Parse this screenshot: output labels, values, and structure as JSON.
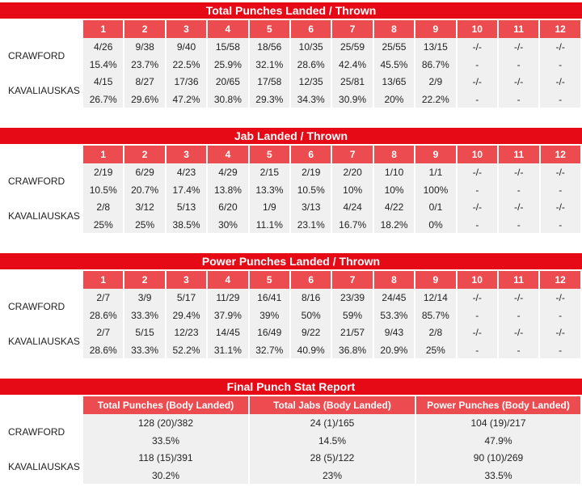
{
  "colors": {
    "title_bg": "#e60a16",
    "header_bg": "#ec4c4f",
    "cell_bg": "#f0f0f0"
  },
  "total": {
    "title": "Total Punches Landed / Thrown",
    "rounds": [
      "1",
      "2",
      "3",
      "4",
      "5",
      "6",
      "7",
      "8",
      "9",
      "10",
      "11",
      "12"
    ],
    "crawford": {
      "name": "CRAWFORD",
      "landed": [
        "4/26",
        "9/38",
        "9/40",
        "15/58",
        "18/56",
        "10/35",
        "25/59",
        "25/55",
        "13/15",
        "-/-",
        "-/-",
        "-/-"
      ],
      "pct": [
        "15.4%",
        "23.7%",
        "22.5%",
        "25.9%",
        "32.1%",
        "28.6%",
        "42.4%",
        "45.5%",
        "86.7%",
        "-",
        "-",
        "-"
      ]
    },
    "kavaliauskas": {
      "name": "KAVALIAUSKAS",
      "landed": [
        "4/15",
        "8/27",
        "17/36",
        "20/65",
        "17/58",
        "12/35",
        "25/81",
        "13/65",
        "2/9",
        "-/-",
        "-/-",
        "-/-"
      ],
      "pct": [
        "26.7%",
        "29.6%",
        "47.2%",
        "30.8%",
        "29.3%",
        "34.3%",
        "30.9%",
        "20%",
        "22.2%",
        "-",
        "-",
        "-"
      ]
    }
  },
  "jab": {
    "title": "Jab Landed / Thrown",
    "rounds": [
      "1",
      "2",
      "3",
      "4",
      "5",
      "6",
      "7",
      "8",
      "9",
      "10",
      "11",
      "12"
    ],
    "crawford": {
      "name": "CRAWFORD",
      "landed": [
        "2/19",
        "6/29",
        "4/23",
        "4/29",
        "2/15",
        "2/19",
        "2/20",
        "1/10",
        "1/1",
        "-/-",
        "-/-",
        "-/-"
      ],
      "pct": [
        "10.5%",
        "20.7%",
        "17.4%",
        "13.8%",
        "13.3%",
        "10.5%",
        "10%",
        "10%",
        "100%",
        "-",
        "-",
        "-"
      ]
    },
    "kavaliauskas": {
      "name": "KAVALIAUSKAS",
      "landed": [
        "2/8",
        "3/12",
        "5/13",
        "6/20",
        "1/9",
        "3/13",
        "4/24",
        "4/22",
        "0/1",
        "-/-",
        "-/-",
        "-/-"
      ],
      "pct": [
        "25%",
        "25%",
        "38.5%",
        "30%",
        "11.1%",
        "23.1%",
        "16.7%",
        "18.2%",
        "0%",
        "-",
        "-",
        "-"
      ]
    }
  },
  "power": {
    "title": "Power Punches Landed / Thrown",
    "rounds": [
      "1",
      "2",
      "3",
      "4",
      "5",
      "6",
      "7",
      "8",
      "9",
      "10",
      "11",
      "12"
    ],
    "crawford": {
      "name": "CRAWFORD",
      "landed": [
        "2/7",
        "3/9",
        "5/17",
        "11/29",
        "16/41",
        "8/16",
        "23/39",
        "24/45",
        "12/14",
        "-/-",
        "-/-",
        "-/-"
      ],
      "pct": [
        "28.6%",
        "33.3%",
        "29.4%",
        "37.9%",
        "39%",
        "50%",
        "59%",
        "53.3%",
        "85.7%",
        "-",
        "-",
        "-"
      ]
    },
    "kavaliauskas": {
      "name": "KAVALIAUSKAS",
      "landed": [
        "2/7",
        "5/15",
        "12/23",
        "14/45",
        "16/49",
        "9/22",
        "21/57",
        "9/43",
        "2/8",
        "-/-",
        "-/-",
        "-/-"
      ],
      "pct": [
        "28.6%",
        "33.3%",
        "52.2%",
        "31.1%",
        "32.7%",
        "40.9%",
        "36.8%",
        "20.9%",
        "25%",
        "-",
        "-",
        "-"
      ]
    }
  },
  "final": {
    "title": "Final Punch Stat Report",
    "headers": [
      "Total Punches (Body Landed)",
      "Total Jabs (Body Landed)",
      "Power Punches (Body Landed)"
    ],
    "crawford": {
      "name": "CRAWFORD",
      "values": [
        "128 (20)/382",
        "24 (1)/165",
        "104 (19)/217"
      ],
      "pct": [
        "33.5%",
        "14.5%",
        "47.9%"
      ]
    },
    "kavaliauskas": {
      "name": "KAVALIAUSKAS",
      "values": [
        "118 (15)/391",
        "28 (5)/122",
        "90 (10)/269"
      ],
      "pct": [
        "30.2%",
        "23%",
        "33.5%"
      ]
    }
  }
}
